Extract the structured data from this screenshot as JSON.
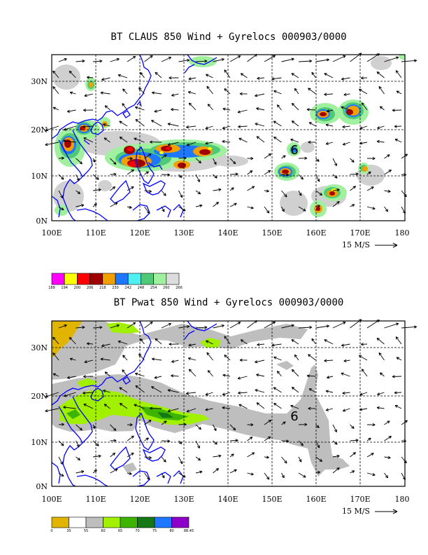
{
  "panels": [
    {
      "title": "BT CLAUS 850 Wind + Gyrelocs 000903/0000",
      "lat_labels": [
        "30N",
        "20N",
        "10N",
        "0N"
      ],
      "lon_labels": [
        "100E",
        "110E",
        "120E",
        "130E",
        "140E",
        "150E",
        "160E",
        "170E",
        "180"
      ],
      "vector_ref": "15 M/S",
      "storm_symbol": "6",
      "colorbar": {
        "labels": [
          "188",
          "194",
          "200",
          "206",
          "218",
          "230",
          "242",
          "248",
          "254",
          "260",
          "266"
        ],
        "colors": [
          "#ff00ff",
          "#ffff00",
          "#ff0000",
          "#a00000",
          "#f0a000",
          "#1e78ff",
          "#50f0f0",
          "#50c878",
          "#a0f0a0",
          "#dcdcdc"
        ]
      }
    },
    {
      "title": "BT Pwat 850 Wind + Gyrelocs 000903/0000",
      "lat_labels": [
        "30N",
        "20N",
        "10N",
        "0N"
      ],
      "lon_labels": [
        "100E",
        "110E",
        "120E",
        "130E",
        "140E",
        "150E",
        "160E",
        "170E",
        "180"
      ],
      "vector_ref": "15 M/S",
      "storm_symbol": "6",
      "colorbar": {
        "labels": [
          "0",
          "35",
          "55",
          "60",
          "65",
          "70",
          "75",
          "80",
          "88.45"
        ],
        "colors": [
          "#e0b400",
          "#ffffff",
          "#bebebe",
          "#a0f000",
          "#3cb400",
          "#147814",
          "#1e78ff",
          "#8c00c8"
        ]
      }
    }
  ],
  "map": {
    "lon_min": 100,
    "lon_max": 180,
    "lat_min": 0,
    "lat_max": 36
  },
  "coast_color": "#0000ff"
}
